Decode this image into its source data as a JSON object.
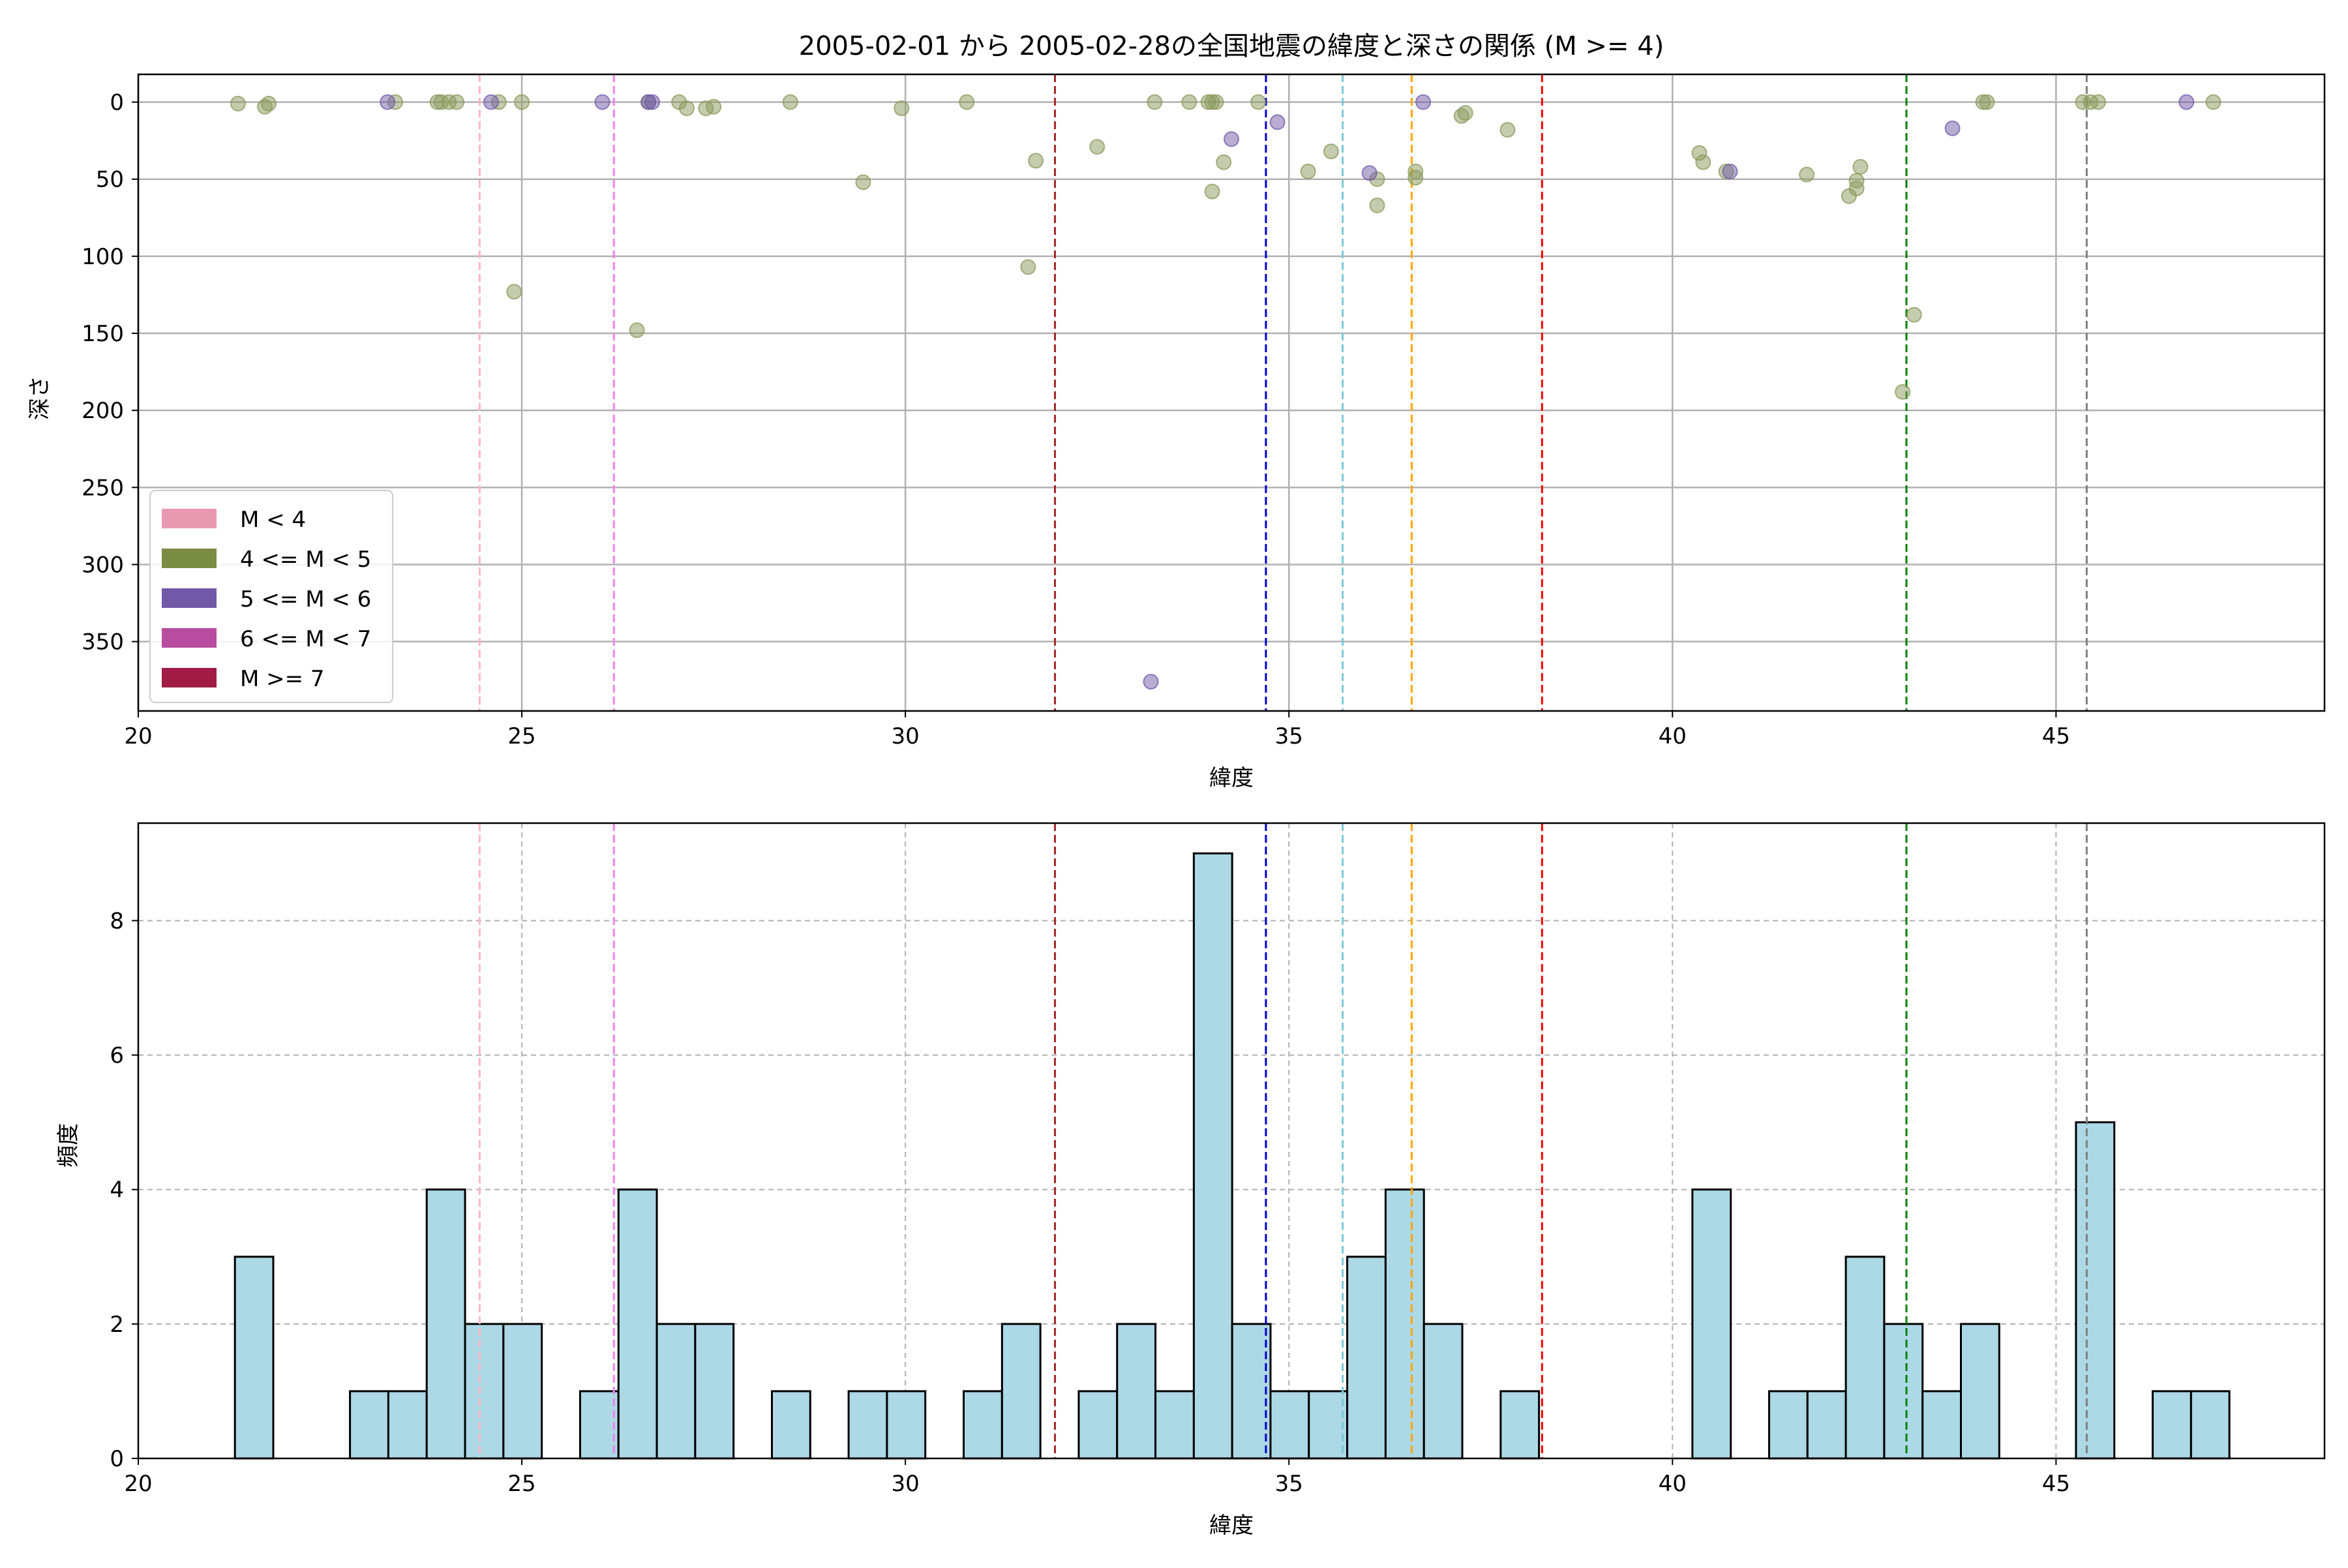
{
  "chart_data": [
    {
      "type": "scatter",
      "title": "2005-02-01 から 2005-02-28の全国地震の緯度と深さの関係 (M >= 4)",
      "xlabel": "緯度",
      "ylabel": "深さ",
      "xlim": [
        20,
        48.5
      ],
      "ylim": [
        395,
        -18
      ],
      "y_inverted": true,
      "xticks": [
        20,
        25,
        30,
        35,
        40,
        45
      ],
      "yticks": [
        0,
        50,
        100,
        150,
        200,
        250,
        300,
        350
      ],
      "grid": true,
      "legend_position": "lower-left",
      "legend": [
        {
          "label": "M < 4",
          "color": "#e899b2"
        },
        {
          "label": "4 <= M < 5",
          "color": "#7b8c45"
        },
        {
          "label": "5 <= M < 6",
          "color": "#7159a8"
        },
        {
          "label": "6 <= M < 7",
          "color": "#b84c9e"
        },
        {
          "label": "M >= 7",
          "color": "#a01c44"
        }
      ],
      "reference_lines": [
        {
          "x": 24.45,
          "color": "#ffb6c1"
        },
        {
          "x": 26.2,
          "color": "#ee82ee"
        },
        {
          "x": 31.95,
          "color": "#a52a2a"
        },
        {
          "x": 34.7,
          "color": "#0000cd"
        },
        {
          "x": 35.7,
          "color": "#7fc8d8"
        },
        {
          "x": 36.6,
          "color": "#ffa500"
        },
        {
          "x": 38.3,
          "color": "#ff0000"
        },
        {
          "x": 43.05,
          "color": "#008000"
        },
        {
          "x": 45.4,
          "color": "#808080"
        }
      ],
      "series": [
        {
          "magnitude_class": "4 <= M < 5",
          "color": "#8a9a5b",
          "points": [
            [
              21.3,
              1
            ],
            [
              21.65,
              3
            ],
            [
              21.7,
              1
            ],
            [
              23.35,
              0
            ],
            [
              23.9,
              0
            ],
            [
              23.95,
              0
            ],
            [
              24.05,
              0
            ],
            [
              24.15,
              0
            ],
            [
              24.7,
              0
            ],
            [
              24.9,
              123
            ],
            [
              25.0,
              0
            ],
            [
              26.5,
              148
            ],
            [
              26.65,
              0
            ],
            [
              27.05,
              0
            ],
            [
              27.15,
              4
            ],
            [
              27.4,
              4
            ],
            [
              27.5,
              3
            ],
            [
              28.5,
              0
            ],
            [
              29.45,
              52
            ],
            [
              29.95,
              4
            ],
            [
              30.8,
              0
            ],
            [
              31.6,
              107
            ],
            [
              31.7,
              38
            ],
            [
              32.5,
              29
            ],
            [
              33.25,
              0
            ],
            [
              33.7,
              0
            ],
            [
              33.95,
              0
            ],
            [
              34.0,
              0
            ],
            [
              34.05,
              0
            ],
            [
              34.0,
              58
            ],
            [
              34.15,
              39
            ],
            [
              34.6,
              0
            ],
            [
              35.25,
              45
            ],
            [
              35.55,
              32
            ],
            [
              36.15,
              50
            ],
            [
              36.15,
              67
            ],
            [
              36.65,
              45
            ],
            [
              36.65,
              49
            ],
            [
              37.25,
              9
            ],
            [
              37.3,
              7
            ],
            [
              37.85,
              18
            ],
            [
              40.35,
              33
            ],
            [
              40.4,
              39
            ],
            [
              40.7,
              45
            ],
            [
              41.75,
              47
            ],
            [
              42.3,
              61
            ],
            [
              42.4,
              56
            ],
            [
              42.4,
              51
            ],
            [
              42.45,
              42
            ],
            [
              43.0,
              188
            ],
            [
              43.15,
              138
            ],
            [
              44.05,
              0
            ],
            [
              44.1,
              0
            ],
            [
              45.35,
              0
            ],
            [
              45.45,
              0
            ],
            [
              45.55,
              0
            ],
            [
              47.05,
              0
            ]
          ]
        },
        {
          "magnitude_class": "5 <= M < 6",
          "color": "#7159a8",
          "points": [
            [
              23.25,
              0
            ],
            [
              24.6,
              0
            ],
            [
              26.05,
              0
            ],
            [
              26.65,
              0
            ],
            [
              26.7,
              0
            ],
            [
              33.2,
              376
            ],
            [
              34.25,
              24
            ],
            [
              34.85,
              13
            ],
            [
              36.05,
              46
            ],
            [
              36.75,
              0
            ],
            [
              40.75,
              45
            ],
            [
              43.65,
              17
            ],
            [
              46.7,
              0
            ]
          ]
        }
      ]
    },
    {
      "type": "bar",
      "title": "",
      "xlabel": "緯度",
      "ylabel": "頻度",
      "xlim": [
        20,
        48.5
      ],
      "ylim": [
        0,
        9.45
      ],
      "xticks": [
        20,
        25,
        30,
        35,
        40,
        45
      ],
      "yticks": [
        0,
        2,
        4,
        6,
        8
      ],
      "grid": true,
      "bar_color": "#add8e6",
      "bins": [
        {
          "start": 21.26,
          "end": 21.76,
          "count": 3
        },
        {
          "start": 22.76,
          "end": 23.26,
          "count": 1
        },
        {
          "start": 23.26,
          "end": 23.76,
          "count": 1
        },
        {
          "start": 23.76,
          "end": 24.26,
          "count": 4
        },
        {
          "start": 24.26,
          "end": 24.76,
          "count": 2
        },
        {
          "start": 24.76,
          "end": 25.26,
          "count": 2
        },
        {
          "start": 25.76,
          "end": 26.26,
          "count": 1
        },
        {
          "start": 26.26,
          "end": 26.76,
          "count": 4
        },
        {
          "start": 26.76,
          "end": 27.26,
          "count": 2
        },
        {
          "start": 27.26,
          "end": 27.76,
          "count": 2
        },
        {
          "start": 28.26,
          "end": 28.76,
          "count": 1
        },
        {
          "start": 29.26,
          "end": 29.76,
          "count": 1
        },
        {
          "start": 29.76,
          "end": 30.26,
          "count": 1
        },
        {
          "start": 30.76,
          "end": 31.26,
          "count": 1
        },
        {
          "start": 31.26,
          "end": 31.76,
          "count": 2
        },
        {
          "start": 32.26,
          "end": 32.76,
          "count": 1
        },
        {
          "start": 32.76,
          "end": 33.26,
          "count": 2
        },
        {
          "start": 33.26,
          "end": 33.76,
          "count": 1
        },
        {
          "start": 33.76,
          "end": 34.26,
          "count": 9
        },
        {
          "start": 34.26,
          "end": 34.76,
          "count": 2
        },
        {
          "start": 34.76,
          "end": 35.26,
          "count": 1
        },
        {
          "start": 35.26,
          "end": 35.76,
          "count": 1
        },
        {
          "start": 35.76,
          "end": 36.26,
          "count": 3
        },
        {
          "start": 36.26,
          "end": 36.76,
          "count": 4
        },
        {
          "start": 36.76,
          "end": 37.26,
          "count": 2
        },
        {
          "start": 37.76,
          "end": 38.26,
          "count": 1
        },
        {
          "start": 40.26,
          "end": 40.76,
          "count": 4
        },
        {
          "start": 41.26,
          "end": 41.76,
          "count": 1
        },
        {
          "start": 41.76,
          "end": 42.26,
          "count": 1
        },
        {
          "start": 42.26,
          "end": 42.76,
          "count": 3
        },
        {
          "start": 42.76,
          "end": 43.26,
          "count": 2
        },
        {
          "start": 43.26,
          "end": 43.76,
          "count": 1
        },
        {
          "start": 43.76,
          "end": 44.26,
          "count": 2
        },
        {
          "start": 45.26,
          "end": 45.76,
          "count": 5
        },
        {
          "start": 46.26,
          "end": 46.76,
          "count": 1
        },
        {
          "start": 46.76,
          "end": 47.26,
          "count": 1
        }
      ],
      "reference_lines": [
        {
          "x": 24.45,
          "color": "#ffb6c1"
        },
        {
          "x": 26.2,
          "color": "#ee82ee"
        },
        {
          "x": 31.95,
          "color": "#a52a2a"
        },
        {
          "x": 34.7,
          "color": "#0000cd"
        },
        {
          "x": 35.7,
          "color": "#7fc8d8"
        },
        {
          "x": 36.6,
          "color": "#ffa500"
        },
        {
          "x": 38.3,
          "color": "#ff0000"
        },
        {
          "x": 43.05,
          "color": "#008000"
        },
        {
          "x": 45.4,
          "color": "#808080"
        }
      ]
    }
  ]
}
